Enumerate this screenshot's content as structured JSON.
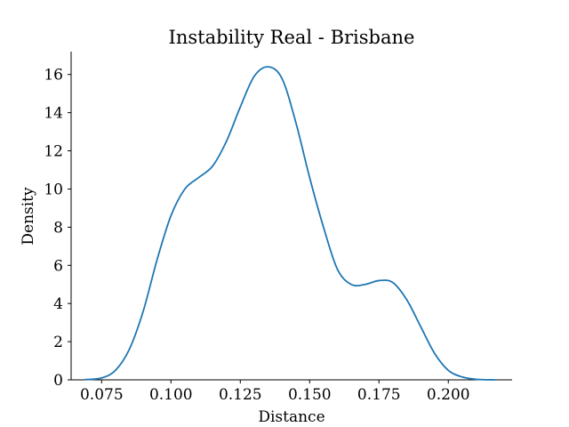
{
  "chart_data": {
    "type": "line",
    "title": "Instability Real - Brisbane",
    "xlabel": "Distance",
    "ylabel": "Density",
    "xlim": [
      0.064,
      0.223
    ],
    "ylim": [
      0,
      17.2
    ],
    "xticks": [
      0.075,
      0.1,
      0.125,
      0.15,
      0.175,
      0.2
    ],
    "xtick_labels": [
      "0.075",
      "0.100",
      "0.125",
      "0.150",
      "0.175",
      "0.200"
    ],
    "yticks": [
      0,
      2,
      4,
      6,
      8,
      10,
      12,
      14,
      16
    ],
    "ytick_labels": [
      "0",
      "2",
      "4",
      "6",
      "8",
      "10",
      "12",
      "14",
      "16"
    ],
    "grid": false,
    "series": [
      {
        "color": "#1f77b4",
        "x": [
          0.069,
          0.075,
          0.08,
          0.085,
          0.09,
          0.095,
          0.1,
          0.105,
          0.11,
          0.115,
          0.12,
          0.125,
          0.13,
          0.135,
          0.14,
          0.145,
          0.15,
          0.155,
          0.16,
          0.165,
          0.17,
          0.175,
          0.18,
          0.185,
          0.19,
          0.195,
          0.2,
          0.205,
          0.21,
          0.217
        ],
        "y": [
          0.01,
          0.1,
          0.5,
          1.6,
          3.6,
          6.3,
          8.6,
          10.0,
          10.6,
          11.2,
          12.5,
          14.3,
          15.9,
          16.4,
          15.8,
          13.5,
          10.6,
          8.0,
          5.8,
          5.0,
          5.0,
          5.2,
          5.1,
          4.2,
          2.8,
          1.4,
          0.5,
          0.15,
          0.03,
          0.0
        ]
      }
    ]
  }
}
